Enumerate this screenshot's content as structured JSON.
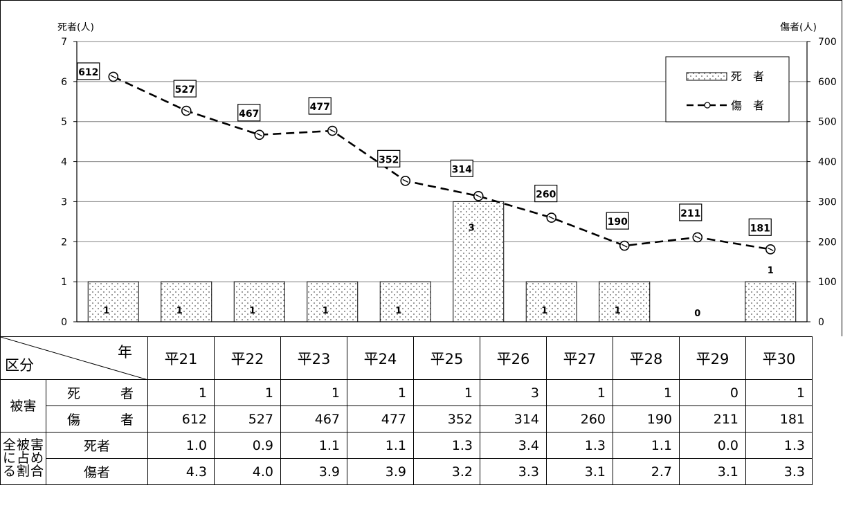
{
  "chart_data": {
    "type": "bar",
    "categories": [
      "平21",
      "平22",
      "平23",
      "平24",
      "平25",
      "平26",
      "平27",
      "平28",
      "平29",
      "平30"
    ],
    "series": [
      {
        "name": "死　者",
        "type": "bar",
        "axis": "left",
        "values": [
          1,
          1,
          1,
          1,
          1,
          3,
          1,
          1,
          0,
          1
        ]
      },
      {
        "name": "傷　者",
        "type": "line",
        "axis": "right",
        "values": [
          612,
          527,
          467,
          477,
          352,
          314,
          260,
          190,
          211,
          181
        ]
      }
    ],
    "y_left": {
      "label": "死者(人)",
      "range": [
        0,
        7
      ],
      "ticks": [
        "0",
        "1",
        "2",
        "3",
        "4",
        "5",
        "6",
        "7"
      ]
    },
    "y_right": {
      "label": "傷者(人)",
      "range": [
        0,
        700
      ],
      "ticks": [
        "0",
        "100",
        "200",
        "300",
        "400",
        "500",
        "600",
        "700"
      ]
    },
    "grid": true,
    "legend_position": "top-right",
    "bar_labels": [
      "1",
      "1",
      "1",
      "1",
      "1",
      "3",
      "1",
      "1",
      "0",
      "1"
    ],
    "line_labels": [
      "612",
      "527",
      "467",
      "477",
      "352",
      "314",
      "260",
      "190",
      "211",
      "181"
    ]
  },
  "table": {
    "corner_year": "年",
    "corner_kubun": "区分",
    "years": [
      "平21",
      "平22",
      "平23",
      "平24",
      "平25",
      "平26",
      "平27",
      "平28",
      "平29",
      "平30"
    ],
    "damage_group": "被害",
    "deaths_label": "死者",
    "injured_label": "傷者",
    "deaths": [
      "1",
      "1",
      "1",
      "1",
      "1",
      "3",
      "1",
      "1",
      "0",
      "1"
    ],
    "injured": [
      "612",
      "527",
      "467",
      "477",
      "352",
      "314",
      "260",
      "190",
      "211",
      "181"
    ],
    "ratio_group": "全被害に占める割合",
    "ratio_deaths_label": "死者",
    "ratio_injured_label": "傷者",
    "ratio_deaths": [
      "1.0",
      "0.9",
      "1.1",
      "1.1",
      "1.3",
      "3.4",
      "1.3",
      "1.1",
      "0.0",
      "1.3"
    ],
    "ratio_injured": [
      "4.3",
      "4.0",
      "3.9",
      "3.9",
      "3.2",
      "3.3",
      "3.1",
      "2.7",
      "3.1",
      "3.3"
    ]
  }
}
